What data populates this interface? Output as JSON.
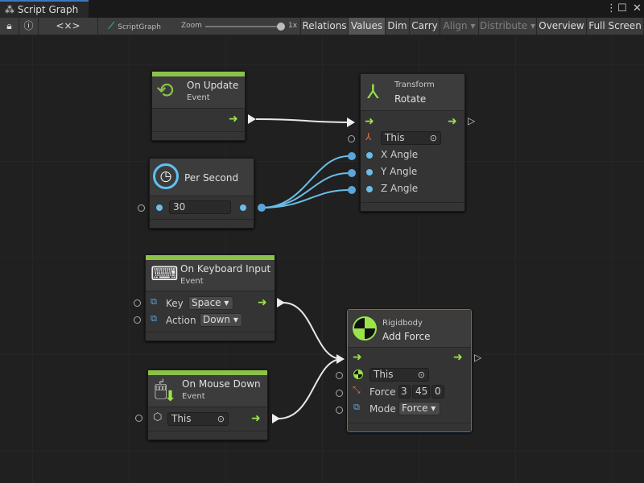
{
  "window": {
    "tab_title": "Script Graph",
    "menu_icon": "kebab-icon",
    "maximize_icon": "maximize-icon",
    "close_icon": "close-icon"
  },
  "toolbar": {
    "lock_icon": "lock-icon",
    "info_icon": "info-icon",
    "variables_label": "<×>",
    "graph_name": "ScriptGraph",
    "zoom_label": "Zoom",
    "zoom_value": "1x",
    "zoom_level": 1.0,
    "buttons": {
      "relations": "Relations",
      "values": "Values",
      "dim": "Dim",
      "carry": "Carry",
      "align": "Align ▾",
      "distribute": "Distribute ▾",
      "overview": "Overview",
      "full_screen": "Full Screen"
    }
  },
  "colors": {
    "flow": "#9be34a",
    "value_edge": "#6bbde9",
    "event_header": "#8bc34a",
    "selection": "#3a79bb"
  },
  "nodes": {
    "on_update": {
      "title": "On Update",
      "subtitle": "Event"
    },
    "per_second": {
      "title": "Per Second",
      "value": "30"
    },
    "rotate": {
      "category": "Transform",
      "title": "Rotate",
      "target": "This",
      "inputs": [
        "X Angle",
        "Y Angle",
        "Z Angle"
      ]
    },
    "keyboard": {
      "title": "On Keyboard Input",
      "subtitle": "Event",
      "key_label": "Key",
      "key_value": "Space ▾",
      "action_label": "Action",
      "action_value": "Down ▾"
    },
    "mouse": {
      "title": "On Mouse Down",
      "subtitle": "Event",
      "target": "This"
    },
    "add_force": {
      "category": "Rigidbody",
      "title": "Add Force",
      "target": "This",
      "force_label": "Force",
      "force": [
        "3",
        "45",
        "0"
      ],
      "mode_label": "Mode",
      "mode_value": "Force ▾"
    }
  }
}
